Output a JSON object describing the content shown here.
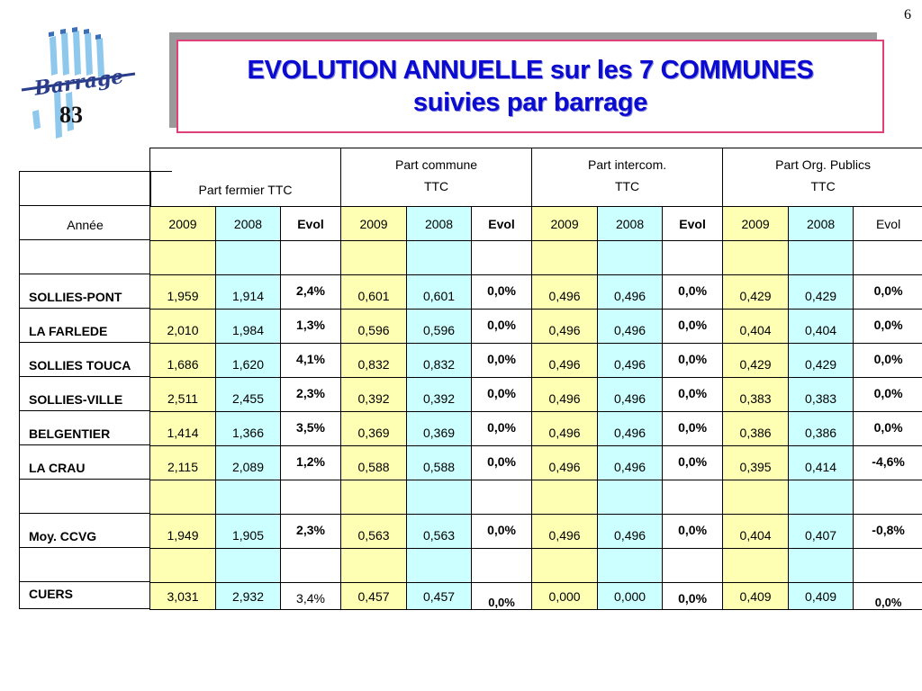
{
  "page_number": "6",
  "logo": {
    "brand_text": "Barrage",
    "number": "83"
  },
  "title": {
    "line1": "EVOLUTION ANNUELLE sur les 7 COMMUNES",
    "line2": "suivies par barrage"
  },
  "row_label_header": "Année",
  "groups": [
    {
      "label": "Part fermier TTC"
    },
    {
      "label_line1": "Part commune",
      "label_line2": "TTC"
    },
    {
      "label_line1": "Part intercom.",
      "label_line2": "TTC"
    },
    {
      "label_line1": "Part Org. Publics",
      "label_line2": "TTC"
    }
  ],
  "sub_headers": [
    "2009",
    "2008",
    "Evol",
    "2009",
    "2008",
    "Evol",
    "2009",
    "2008",
    "Evol",
    "2009",
    "2008",
    "Evol"
  ],
  "rows": [
    {
      "name": "SOLLIES-PONT",
      "values": [
        "1,959",
        "1,914",
        "2,4%",
        "0,601",
        "0,601",
        "0,0%",
        "0,496",
        "0,496",
        "0,0%",
        "0,429",
        "0,429",
        "0,0%"
      ]
    },
    {
      "name": "LA FARLEDE",
      "values": [
        "2,010",
        "1,984",
        "1,3%",
        "0,596",
        "0,596",
        "0,0%",
        "0,496",
        "0,496",
        "0,0%",
        "0,404",
        "0,404",
        "0,0%"
      ]
    },
    {
      "name": "SOLLIES TOUCA",
      "values": [
        "1,686",
        "1,620",
        "4,1%",
        "0,832",
        "0,832",
        "0,0%",
        "0,496",
        "0,496",
        "0,0%",
        "0,429",
        "0,429",
        "0,0%"
      ]
    },
    {
      "name": "SOLLIES-VILLE",
      "values": [
        "2,511",
        "2,455",
        "2,3%",
        "0,392",
        "0,392",
        "0,0%",
        "0,496",
        "0,496",
        "0,0%",
        "0,383",
        "0,383",
        "0,0%"
      ]
    },
    {
      "name": "BELGENTIER",
      "values": [
        "1,414",
        "1,366",
        "3,5%",
        "0,369",
        "0,369",
        "0,0%",
        "0,496",
        "0,496",
        "0,0%",
        "0,386",
        "0,386",
        "0,0%"
      ]
    },
    {
      "name": "LA CRAU",
      "values": [
        "2,115",
        "2,089",
        "1,2%",
        "0,588",
        "0,588",
        "0,0%",
        "0,496",
        "0,496",
        "0,0%",
        "0,395",
        "0,414",
        "-4,6%"
      ]
    },
    {
      "name": "Moy. CCVG",
      "values": [
        "1,949",
        "1,905",
        "2,3%",
        "0,563",
        "0,563",
        "0,0%",
        "0,496",
        "0,496",
        "0,0%",
        "0,404",
        "0,407",
        "-0,8%"
      ]
    },
    {
      "name": "CUERS",
      "values": [
        "3,031",
        "2,932",
        "3,4%",
        "0,457",
        "0,457",
        "0,0%",
        "0,000",
        "0,000",
        "0,0%",
        "0,409",
        "0,409",
        "0,0%"
      ]
    }
  ],
  "colors": {
    "title_text": "#0a0ad0",
    "title_border": "#e0407a",
    "evol_text": "#e00000",
    "col_2009_fill": "#ffffb3",
    "col_2008_fill": "#ccffff"
  }
}
